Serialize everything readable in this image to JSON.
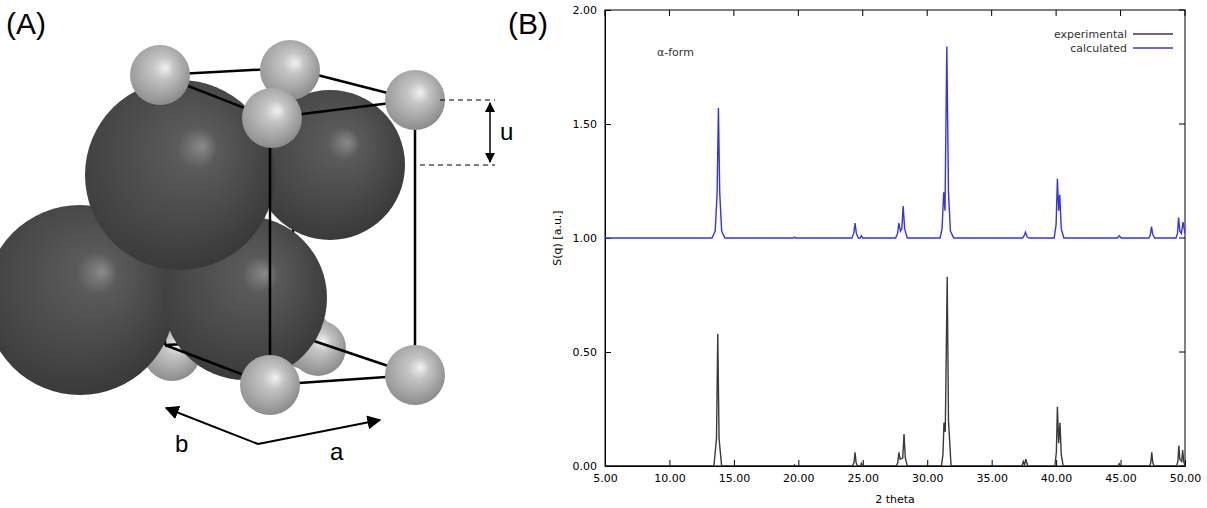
{
  "figure": {
    "panel_labels": [
      "(A)",
      "(B)"
    ]
  },
  "diagram": {
    "axis_labels": [
      "b",
      "a"
    ],
    "dimension_label": "u"
  },
  "chart_data": {
    "type": "line",
    "annotations": [
      "α-form"
    ],
    "x_label": "2 theta",
    "y_label": "S(q) [a.u.]",
    "xlim": [
      5,
      50
    ],
    "xticks": [
      {
        "value": 5,
        "label": "5.00"
      },
      {
        "value": 10,
        "label": "10.00"
      },
      {
        "value": 15,
        "label": "15.00"
      },
      {
        "value": 20,
        "label": "20.00"
      },
      {
        "value": 25,
        "label": "25.00"
      },
      {
        "value": 30,
        "label": "30.00"
      },
      {
        "value": 35,
        "label": "35.00"
      },
      {
        "value": 40,
        "label": "40.00"
      },
      {
        "value": 45,
        "label": "45.00"
      },
      {
        "value": 50,
        "label": "50.00"
      }
    ],
    "ylim": [
      0,
      2
    ],
    "yticks": [
      {
        "value": 0,
        "label": "0.00"
      },
      {
        "value": 0.5,
        "label": "0.50"
      },
      {
        "value": 1,
        "label": "1.00"
      },
      {
        "value": 1.5,
        "label": "1.50"
      },
      {
        "value": 2,
        "label": "2.00"
      }
    ],
    "legend": "upper right",
    "grid": false,
    "series": [
      {
        "name": "experimental",
        "color": "#3a3a3a",
        "x": [
          5.0,
          13.45,
          13.65,
          13.75,
          13.85,
          14.05,
          19.6,
          19.7,
          19.8,
          24.2,
          24.32,
          24.4,
          24.48,
          24.6,
          24.8,
          24.9,
          25.0,
          27.6,
          27.72,
          27.8,
          27.9,
          28.1,
          28.2,
          28.3,
          28.45,
          31.1,
          31.22,
          31.3,
          31.4,
          31.55,
          31.65,
          31.85,
          37.35,
          37.45,
          37.55,
          37.65,
          37.8,
          39.9,
          40.02,
          40.1,
          40.2,
          40.3,
          40.4,
          40.55,
          44.8,
          44.9,
          45.0,
          47.25,
          47.35,
          47.42,
          47.5,
          47.6,
          49.35,
          49.45,
          49.52,
          49.6,
          49.75,
          49.82,
          49.9,
          50.0
        ],
        "values": [
          0.0,
          0.0,
          0.12,
          0.58,
          0.12,
          0.0,
          0.0,
          0.005,
          0.0,
          0.0,
          0.015,
          0.06,
          0.015,
          0.0,
          0.0,
          0.012,
          0.0,
          0.0,
          0.015,
          0.06,
          0.03,
          0.035,
          0.14,
          0.035,
          0.0,
          0.0,
          0.05,
          0.19,
          0.15,
          0.83,
          0.2,
          0.0,
          0.0,
          0.02,
          0.005,
          0.03,
          0.0,
          0.0,
          0.06,
          0.26,
          0.1,
          0.19,
          0.05,
          0.0,
          0.0,
          0.01,
          0.0,
          0.0,
          0.015,
          0.06,
          0.015,
          0.0,
          0.0,
          0.02,
          0.09,
          0.03,
          0.02,
          0.07,
          0.02,
          0.0
        ]
      },
      {
        "name": "calculated",
        "color": "#3333ee",
        "x": [
          5.0,
          13.3,
          13.55,
          13.7,
          13.8,
          13.9,
          14.05,
          14.3,
          19.6,
          19.7,
          19.8,
          24.15,
          24.3,
          24.4,
          24.5,
          24.65,
          24.8,
          24.9,
          25.0,
          27.55,
          27.7,
          27.8,
          27.92,
          28.03,
          28.13,
          28.25,
          28.45,
          31.0,
          31.15,
          31.28,
          31.38,
          31.52,
          31.65,
          31.8,
          32.05,
          37.4,
          37.52,
          37.62,
          37.75,
          37.9,
          39.85,
          40.0,
          40.1,
          40.2,
          40.28,
          40.4,
          40.6,
          44.75,
          44.9,
          45.05,
          47.2,
          47.32,
          47.4,
          47.5,
          47.65,
          49.3,
          49.42,
          49.5,
          49.6,
          49.72,
          49.85,
          50.0
        ],
        "values": [
          1.0,
          1.0,
          1.03,
          1.2,
          1.57,
          1.2,
          1.03,
          1.0,
          1.0,
          1.004,
          1.0,
          1.0,
          1.02,
          1.065,
          1.02,
          1.0,
          1.0,
          1.01,
          1.0,
          1.0,
          1.02,
          1.065,
          1.03,
          1.04,
          1.14,
          1.04,
          1.0,
          1.0,
          1.04,
          1.2,
          1.12,
          1.84,
          1.2,
          1.03,
          1.0,
          1.0,
          1.01,
          1.025,
          1.005,
          1.0,
          1.0,
          1.06,
          1.26,
          1.12,
          1.19,
          1.04,
          1.0,
          1.0,
          1.01,
          1.0,
          1.0,
          1.015,
          1.05,
          1.015,
          1.0,
          1.0,
          1.02,
          1.09,
          1.03,
          1.02,
          1.07,
          1.02
        ]
      }
    ]
  }
}
